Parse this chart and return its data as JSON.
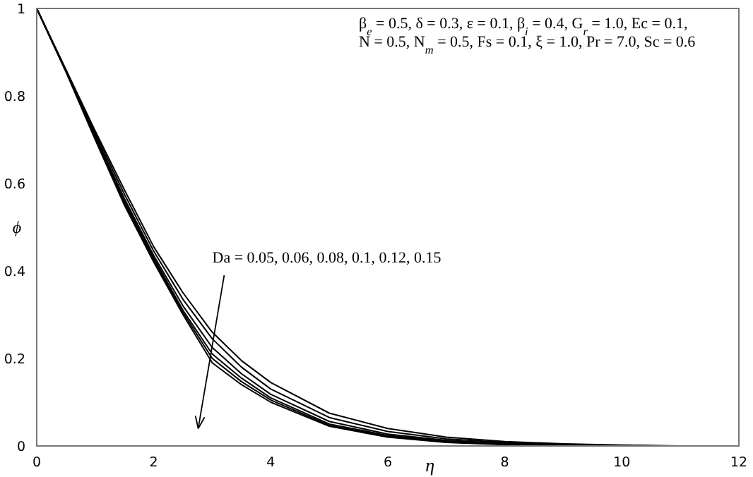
{
  "chart_data": {
    "type": "line",
    "xlabel": "η",
    "ylabel": "ϕ",
    "series": [
      {
        "color": "#000000",
        "x": [
          0,
          0.5,
          1,
          1.5,
          2,
          2.5,
          3,
          3.5,
          4,
          5,
          6,
          7,
          8,
          9,
          10,
          11
        ],
        "values": [
          1,
          0.86,
          0.72,
          0.585,
          0.455,
          0.35,
          0.26,
          0.195,
          0.145,
          0.075,
          0.04,
          0.02,
          0.01,
          0.005,
          0.002,
          0
        ]
      },
      {
        "color": "#000000",
        "x": [
          0,
          0.5,
          1,
          1.5,
          2,
          2.5,
          3,
          3.5,
          4,
          5,
          6,
          7,
          8,
          9,
          10,
          10.8
        ],
        "values": [
          1,
          0.858,
          0.715,
          0.575,
          0.445,
          0.335,
          0.245,
          0.18,
          0.13,
          0.065,
          0.033,
          0.016,
          0.008,
          0.004,
          0.001,
          0
        ]
      },
      {
        "color": "#000000",
        "x": [
          0,
          0.5,
          1,
          1.5,
          2,
          2.5,
          3,
          3.5,
          4,
          5,
          6,
          7,
          8,
          9,
          10.6
        ],
        "values": [
          1,
          0.857,
          0.71,
          0.565,
          0.435,
          0.32,
          0.225,
          0.165,
          0.118,
          0.056,
          0.027,
          0.013,
          0.006,
          0.003,
          0
        ]
      },
      {
        "color": "#000000",
        "x": [
          0,
          0.5,
          1,
          1.5,
          2,
          2.5,
          3,
          3.5,
          4,
          5,
          6,
          7,
          8,
          9,
          10.4
        ],
        "values": [
          1,
          0.856,
          0.705,
          0.56,
          0.43,
          0.31,
          0.21,
          0.155,
          0.11,
          0.05,
          0.024,
          0.011,
          0.005,
          0.002,
          0
        ]
      },
      {
        "color": "#000000",
        "x": [
          0,
          0.5,
          1,
          1.5,
          2,
          2.5,
          3,
          3.5,
          4,
          5,
          6,
          7,
          8,
          9,
          10.2
        ],
        "values": [
          1,
          0.856,
          0.703,
          0.555,
          0.425,
          0.305,
          0.2,
          0.147,
          0.105,
          0.047,
          0.022,
          0.009,
          0.004,
          0.002,
          0
        ]
      },
      {
        "color": "#000000",
        "x": [
          0,
          0.5,
          1,
          1.5,
          2,
          2.5,
          3,
          3.5,
          4,
          5,
          6,
          7,
          8,
          10
        ],
        "values": [
          1,
          0.855,
          0.7,
          0.55,
          0.42,
          0.3,
          0.19,
          0.14,
          0.1,
          0.045,
          0.02,
          0.008,
          0.003,
          0
        ]
      }
    ],
    "xlim": [
      0,
      12
    ],
    "xticks": [
      0,
      2,
      4,
      6,
      8,
      10,
      12
    ],
    "ylim": [
      0,
      1
    ],
    "yticks": [
      0,
      0.2,
      0.4,
      0.6,
      0.8,
      1
    ],
    "grid": false,
    "legend": false,
    "marker": "none",
    "line_style": "solid",
    "annotations": [
      "β$_{e}$ = 0.5, δ = 0.3, ε = 0.1, β$_{i}$ = 0.4, G$_{r}$ = 1.0, Ec = 0.1,",
      "N = 0.5, N$_{m}$ = 0.5, Fs = 0.1, ξ = 1.0, Pr = 7.0, Sc = 0.6",
      "Da = 0.05, 0.06, 0.08, 0.1, 0.12, 0.15"
    ]
  }
}
